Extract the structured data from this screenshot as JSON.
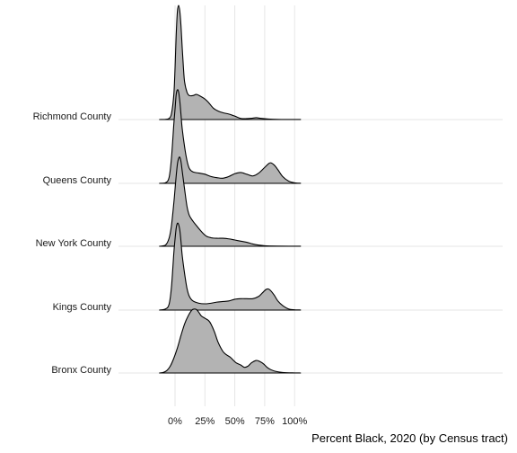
{
  "chart_data": {
    "type": "area",
    "subtype": "ridgeline",
    "title": "",
    "xlabel": "Percent Black, 2020 (by Census tract)",
    "ylabel": "",
    "xlim": [
      -15,
      105
    ],
    "x_ticks": [
      0,
      25,
      50,
      75,
      100
    ],
    "x_tick_labels": [
      "0%",
      "25%",
      "50%",
      "75%",
      "100%"
    ],
    "grid": "vertical",
    "legend": "none",
    "fill_color": "#b3b3b3",
    "line_color": "#000000",
    "categories": [
      "Richmond County",
      "Queens County",
      "New York County",
      "Kings County",
      "Bronx County"
    ],
    "series": [
      {
        "name": "Richmond County",
        "points": [
          [
            -13,
            0
          ],
          [
            -8,
            0.002
          ],
          [
            -5,
            0.01
          ],
          [
            -3,
            0.05
          ],
          [
            -1,
            0.22
          ],
          [
            0,
            0.45
          ],
          [
            1,
            0.75
          ],
          [
            2,
            0.95
          ],
          [
            3,
            1.0
          ],
          [
            4,
            0.95
          ],
          [
            5,
            0.82
          ],
          [
            6,
            0.63
          ],
          [
            7,
            0.46
          ],
          [
            8,
            0.33
          ],
          [
            10,
            0.24
          ],
          [
            12,
            0.21
          ],
          [
            15,
            0.21
          ],
          [
            18,
            0.22
          ],
          [
            22,
            0.2
          ],
          [
            25,
            0.18
          ],
          [
            28,
            0.15
          ],
          [
            32,
            0.1
          ],
          [
            36,
            0.075
          ],
          [
            40,
            0.06
          ],
          [
            45,
            0.048
          ],
          [
            50,
            0.03
          ],
          [
            55,
            0.01
          ],
          [
            60,
            0.008
          ],
          [
            65,
            0.012
          ],
          [
            68,
            0.016
          ],
          [
            72,
            0.01
          ],
          [
            78,
            0.005
          ],
          [
            85,
            0.002
          ],
          [
            95,
            0.001
          ],
          [
            105,
            0.001
          ]
        ]
      },
      {
        "name": "Queens County",
        "points": [
          [
            -13,
            0
          ],
          [
            -8,
            0.005
          ],
          [
            -5,
            0.05
          ],
          [
            -3,
            0.22
          ],
          [
            -1,
            0.52
          ],
          [
            0,
            0.65
          ],
          [
            1,
            0.78
          ],
          [
            2,
            0.82
          ],
          [
            3,
            0.8
          ],
          [
            4,
            0.72
          ],
          [
            5,
            0.6
          ],
          [
            6,
            0.48
          ],
          [
            8,
            0.32
          ],
          [
            10,
            0.2
          ],
          [
            12,
            0.13
          ],
          [
            15,
            0.1
          ],
          [
            20,
            0.09
          ],
          [
            25,
            0.08
          ],
          [
            30,
            0.06
          ],
          [
            35,
            0.05
          ],
          [
            40,
            0.045
          ],
          [
            45,
            0.06
          ],
          [
            50,
            0.085
          ],
          [
            55,
            0.095
          ],
          [
            60,
            0.08
          ],
          [
            65,
            0.065
          ],
          [
            70,
            0.09
          ],
          [
            75,
            0.14
          ],
          [
            78,
            0.17
          ],
          [
            80,
            0.18
          ],
          [
            83,
            0.16
          ],
          [
            86,
            0.12
          ],
          [
            90,
            0.06
          ],
          [
            95,
            0.02
          ],
          [
            100,
            0.005
          ],
          [
            105,
            0.001
          ]
        ]
      },
      {
        "name": "New York County",
        "points": [
          [
            -13,
            0
          ],
          [
            -8,
            0.01
          ],
          [
            -5,
            0.07
          ],
          [
            -3,
            0.18
          ],
          [
            -1,
            0.38
          ],
          [
            0,
            0.5
          ],
          [
            1,
            0.62
          ],
          [
            2,
            0.72
          ],
          [
            3,
            0.77
          ],
          [
            4,
            0.78
          ],
          [
            5,
            0.74
          ],
          [
            6,
            0.66
          ],
          [
            8,
            0.5
          ],
          [
            10,
            0.35
          ],
          [
            12,
            0.27
          ],
          [
            15,
            0.22
          ],
          [
            18,
            0.18
          ],
          [
            22,
            0.13
          ],
          [
            26,
            0.09
          ],
          [
            30,
            0.075
          ],
          [
            35,
            0.07
          ],
          [
            40,
            0.07
          ],
          [
            45,
            0.065
          ],
          [
            50,
            0.055
          ],
          [
            55,
            0.045
          ],
          [
            60,
            0.035
          ],
          [
            65,
            0.02
          ],
          [
            70,
            0.01
          ],
          [
            75,
            0.005
          ],
          [
            85,
            0.002
          ],
          [
            95,
            0.001
          ],
          [
            105,
            0.001
          ]
        ]
      },
      {
        "name": "Kings County",
        "points": [
          [
            -13,
            0
          ],
          [
            -8,
            0.01
          ],
          [
            -5,
            0.05
          ],
          [
            -3,
            0.2
          ],
          [
            -1,
            0.5
          ],
          [
            0,
            0.62
          ],
          [
            1,
            0.72
          ],
          [
            2,
            0.76
          ],
          [
            3,
            0.75
          ],
          [
            4,
            0.7
          ],
          [
            5,
            0.6
          ],
          [
            6,
            0.48
          ],
          [
            8,
            0.32
          ],
          [
            10,
            0.19
          ],
          [
            12,
            0.12
          ],
          [
            15,
            0.08
          ],
          [
            20,
            0.06
          ],
          [
            25,
            0.055
          ],
          [
            30,
            0.06
          ],
          [
            35,
            0.07
          ],
          [
            40,
            0.075
          ],
          [
            45,
            0.08
          ],
          [
            50,
            0.095
          ],
          [
            55,
            0.1
          ],
          [
            60,
            0.1
          ],
          [
            65,
            0.1
          ],
          [
            70,
            0.12
          ],
          [
            73,
            0.15
          ],
          [
            76,
            0.18
          ],
          [
            78,
            0.185
          ],
          [
            80,
            0.17
          ],
          [
            83,
            0.13
          ],
          [
            86,
            0.08
          ],
          [
            90,
            0.04
          ],
          [
            95,
            0.01
          ],
          [
            100,
            0.003
          ],
          [
            105,
            0.001
          ]
        ]
      },
      {
        "name": "Bronx County",
        "points": [
          [
            -13,
            0
          ],
          [
            -10,
            0.005
          ],
          [
            -7,
            0.02
          ],
          [
            -4,
            0.06
          ],
          [
            -1,
            0.13
          ],
          [
            2,
            0.22
          ],
          [
            5,
            0.33
          ],
          [
            8,
            0.43
          ],
          [
            11,
            0.5
          ],
          [
            14,
            0.55
          ],
          [
            16,
            0.56
          ],
          [
            18,
            0.555
          ],
          [
            20,
            0.53
          ],
          [
            22,
            0.5
          ],
          [
            25,
            0.48
          ],
          [
            28,
            0.46
          ],
          [
            30,
            0.43
          ],
          [
            33,
            0.36
          ],
          [
            36,
            0.27
          ],
          [
            40,
            0.19
          ],
          [
            43,
            0.16
          ],
          [
            46,
            0.14
          ],
          [
            48,
            0.12
          ],
          [
            51,
            0.09
          ],
          [
            55,
            0.07
          ],
          [
            58,
            0.05
          ],
          [
            61,
            0.06
          ],
          [
            64,
            0.09
          ],
          [
            68,
            0.11
          ],
          [
            71,
            0.1
          ],
          [
            74,
            0.08
          ],
          [
            77,
            0.05
          ],
          [
            80,
            0.03
          ],
          [
            84,
            0.015
          ],
          [
            90,
            0.005
          ],
          [
            100,
            0.001
          ],
          [
            105,
            0.0
          ]
        ]
      }
    ]
  }
}
